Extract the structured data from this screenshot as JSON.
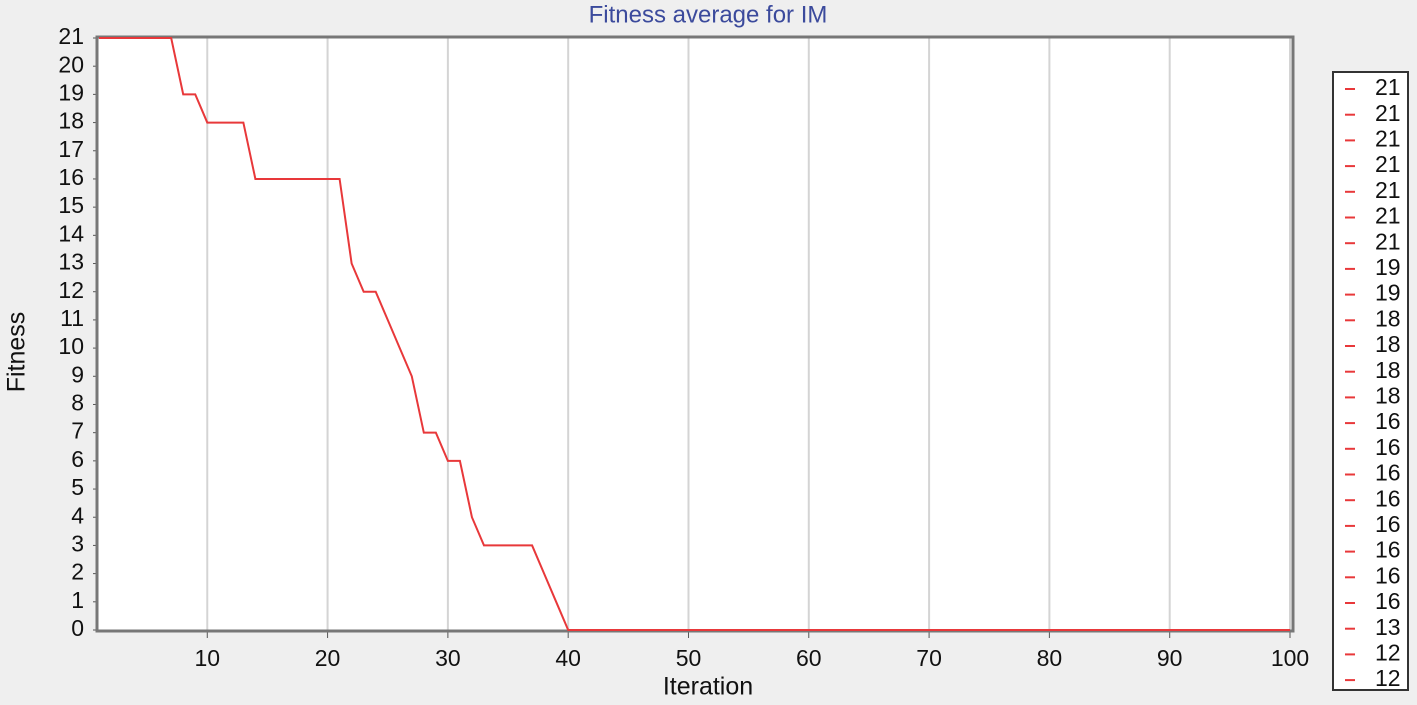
{
  "chart_data": {
    "type": "line",
    "title": "Fitness average for IM",
    "x_label": "Iteration",
    "y_label": "Fitness",
    "color": "#e8383a",
    "x": [
      1,
      2,
      3,
      4,
      5,
      6,
      7,
      8,
      9,
      10,
      11,
      12,
      13,
      14,
      15,
      16,
      17,
      18,
      19,
      20,
      21,
      22,
      23,
      24,
      25,
      26,
      27,
      28,
      29,
      30,
      31,
      32,
      33,
      34,
      35,
      36,
      37,
      38,
      39,
      40,
      41,
      42,
      43,
      44,
      45,
      46,
      47,
      48,
      49,
      50,
      51,
      52,
      53,
      54,
      55,
      56,
      57,
      58,
      59,
      60,
      61,
      62,
      63,
      64,
      65,
      66,
      67,
      68,
      69,
      70,
      71,
      72,
      73,
      74,
      75,
      76,
      77,
      78,
      79,
      80,
      81,
      82,
      83,
      84,
      85,
      86,
      87,
      88,
      89,
      90,
      91,
      92,
      93,
      94,
      95,
      96,
      97,
      98,
      99,
      100
    ],
    "values": [
      21,
      21,
      21,
      21,
      21,
      21,
      21,
      19,
      19,
      18,
      18,
      18,
      18,
      16,
      16,
      16,
      16,
      16,
      16,
      16,
      16,
      13,
      12,
      12,
      11,
      10,
      9,
      7,
      7,
      6,
      6,
      4,
      3,
      3,
      3,
      3,
      3,
      2,
      1,
      0,
      0,
      0,
      0,
      0,
      0,
      0,
      0,
      0,
      0,
      0,
      0,
      0,
      0,
      0,
      0,
      0,
      0,
      0,
      0,
      0,
      0,
      0,
      0,
      0,
      0,
      0,
      0,
      0,
      0,
      0,
      0,
      0,
      0,
      0,
      0,
      0,
      0,
      0,
      0,
      0,
      0,
      0,
      0,
      0,
      0,
      0,
      0,
      0,
      0,
      0,
      0,
      0,
      0,
      0,
      0,
      0,
      0,
      0,
      0,
      0
    ],
    "xlim": [
      1,
      100
    ],
    "ylim": [
      0,
      21
    ],
    "xticks": [
      10,
      20,
      30,
      40,
      50,
      60,
      70,
      80,
      90,
      100
    ],
    "yticks": [
      0,
      1,
      2,
      3,
      4,
      5,
      6,
      7,
      8,
      9,
      10,
      11,
      12,
      13,
      14,
      15,
      16,
      17,
      18,
      19,
      20,
      21
    ],
    "grid": "x"
  }
}
